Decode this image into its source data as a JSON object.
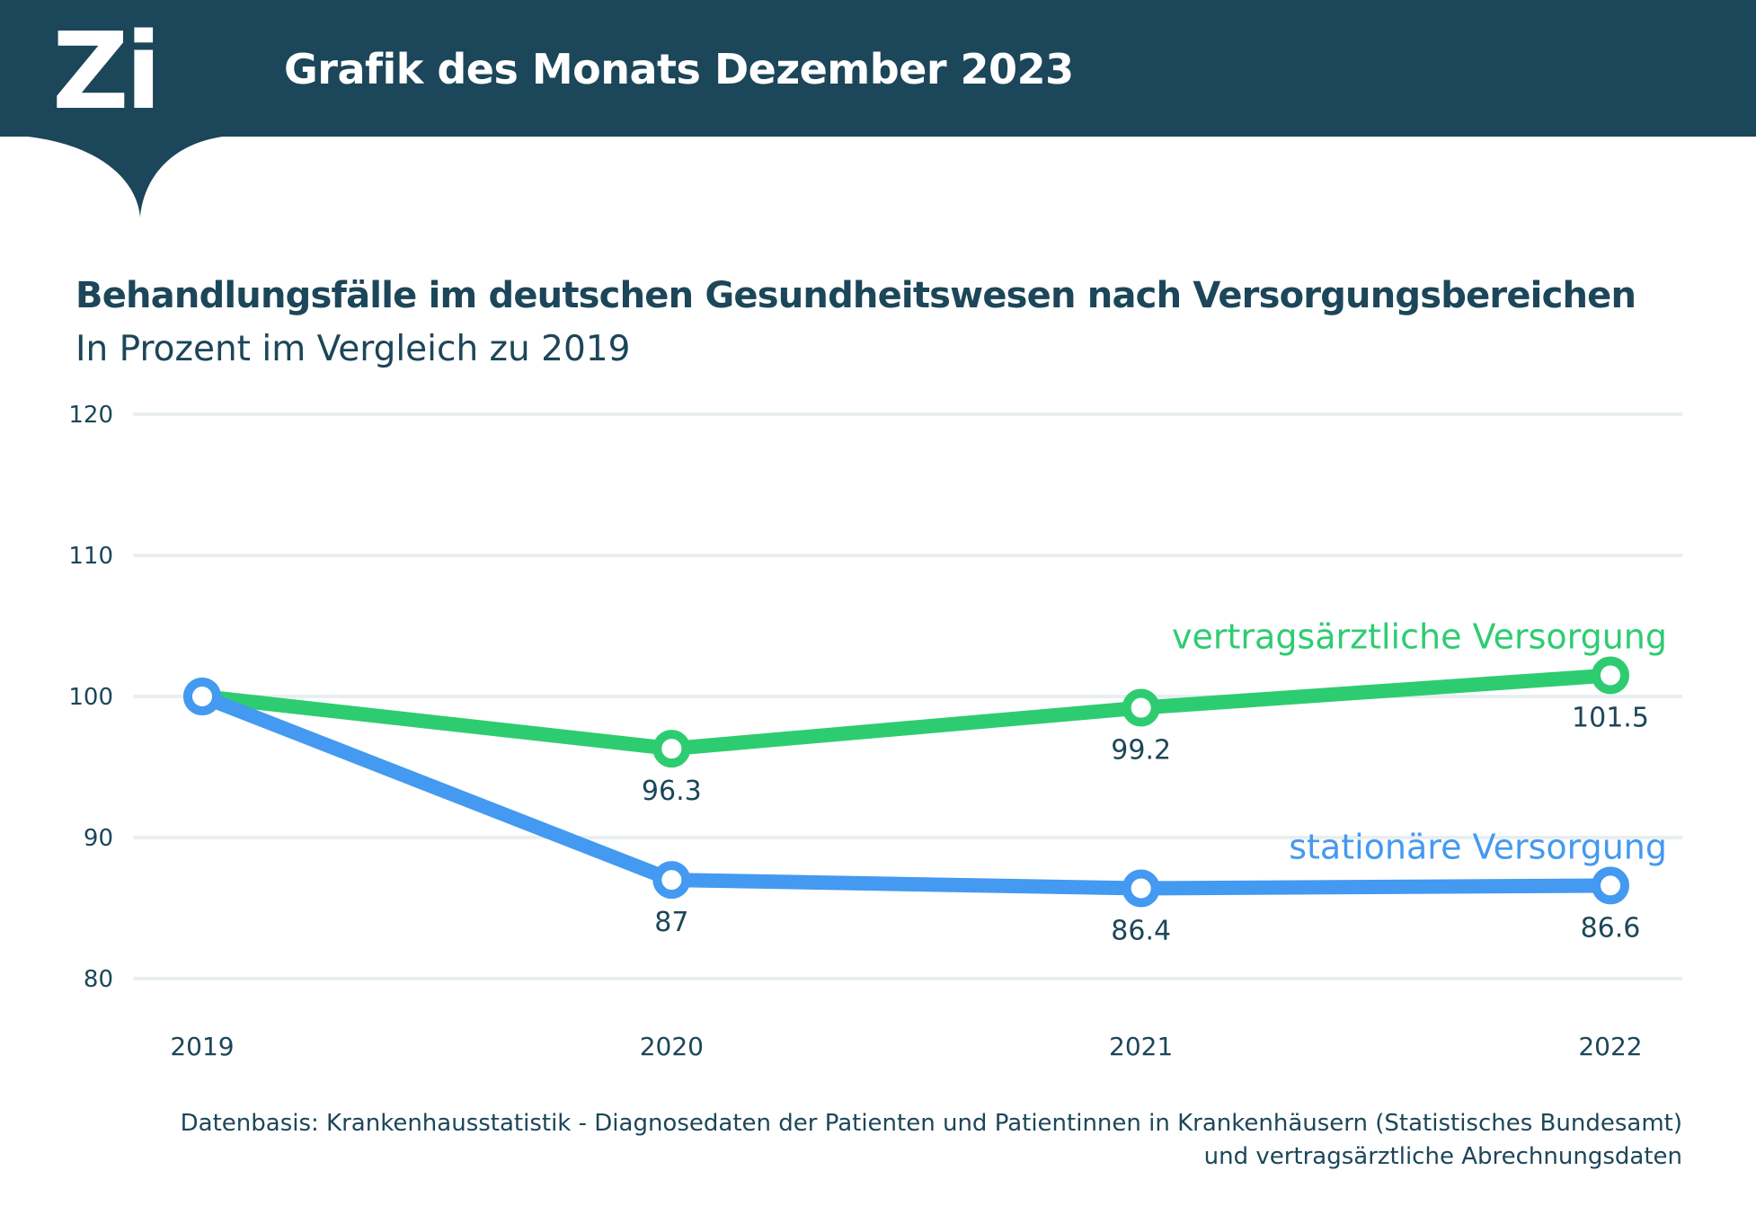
{
  "header": {
    "logo_text": "Zi",
    "title": "Grafik des Monats Dezember 2023"
  },
  "colors": {
    "header_bg": "#1c4659",
    "green": "#2ecc71",
    "blue": "#4499f0",
    "grid": "#e9eef1",
    "text": "#1c4659"
  },
  "chart_data": {
    "type": "line",
    "title": "Behandlungsfälle im deutschen Gesundheitswesen nach Versorgungsbereichen",
    "subtitle": "In Prozent im Vergleich zu 2019",
    "xlabel": "",
    "ylabel": "",
    "categories": [
      "2019",
      "2020",
      "2021",
      "2022"
    ],
    "ylim": [
      80,
      120
    ],
    "yticks": [
      80,
      90,
      100,
      110,
      120
    ],
    "grid": true,
    "series": [
      {
        "name": "vertragsärztliche Versorgung",
        "color": "#2ecc71",
        "values": [
          100,
          96.3,
          99.2,
          101.5
        ],
        "labels": [
          "",
          "96.3",
          "99.2",
          "101.5"
        ]
      },
      {
        "name": "stationäre Versorgung",
        "color": "#4499f0",
        "values": [
          100,
          87,
          86.4,
          86.6
        ],
        "labels": [
          "",
          "87",
          "86.4",
          "86.6"
        ]
      }
    ]
  },
  "source": {
    "line1": "Datenbasis: Krankenhausstatistik - Diagnosedaten der Patienten und Patientinnen in Krankenhäusern (Statistisches Bundesamt)",
    "line2": "und vertragsärztliche Abrechnungsdaten"
  }
}
